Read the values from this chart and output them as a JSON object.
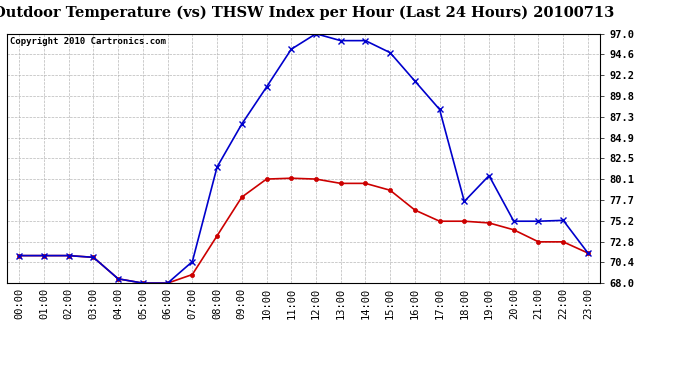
{
  "title": "Outdoor Temperature (vs) THSW Index per Hour (Last 24 Hours) 20100713",
  "copyright": "Copyright 2010 Cartronics.com",
  "hours": [
    "00:00",
    "01:00",
    "02:00",
    "03:00",
    "04:00",
    "05:00",
    "06:00",
    "07:00",
    "08:00",
    "09:00",
    "10:00",
    "11:00",
    "12:00",
    "13:00",
    "14:00",
    "15:00",
    "16:00",
    "17:00",
    "18:00",
    "19:00",
    "20:00",
    "21:00",
    "22:00",
    "23:00"
  ],
  "temp": [
    71.2,
    71.2,
    71.2,
    71.0,
    68.5,
    68.0,
    68.0,
    69.0,
    73.5,
    78.0,
    80.1,
    80.2,
    80.1,
    79.6,
    79.6,
    78.8,
    76.5,
    75.2,
    75.2,
    75.0,
    74.2,
    72.8,
    72.8,
    71.5
  ],
  "thsw": [
    71.2,
    71.2,
    71.2,
    71.0,
    68.5,
    68.0,
    68.0,
    70.5,
    81.5,
    86.5,
    90.8,
    95.2,
    97.0,
    96.2,
    96.2,
    94.8,
    91.5,
    88.2,
    77.5,
    80.5,
    75.2,
    75.2,
    75.3,
    71.5
  ],
  "ylim": [
    68.0,
    97.0
  ],
  "yticks": [
    68.0,
    70.4,
    72.8,
    75.2,
    77.7,
    80.1,
    82.5,
    84.9,
    87.3,
    89.8,
    92.2,
    94.6,
    97.0
  ],
  "temp_color": "#cc0000",
  "thsw_color": "#0000cc",
  "bg_color": "#ffffff",
  "plot_bg": "#ffffff",
  "grid_color": "#b0b0b0",
  "title_fontsize": 10.5,
  "copyright_fontsize": 6.5,
  "tick_fontsize": 7.5
}
